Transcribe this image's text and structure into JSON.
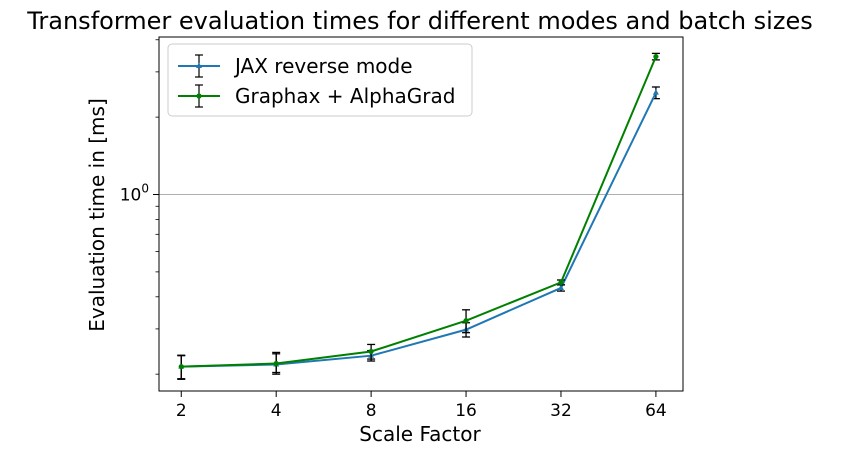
{
  "chart_data": {
    "type": "line",
    "title": "Transformer evaluation times for different modes and batch sizes",
    "xlabel": "Scale Factor",
    "ylabel": "Evaluation time in [ms]",
    "x_scale": "log2",
    "y_scale": "log",
    "categories": [
      "2",
      "4",
      "8",
      "16",
      "32",
      "64"
    ],
    "x": [
      2,
      4,
      8,
      16,
      32,
      64
    ],
    "xlim": [
      1.7,
      78
    ],
    "ylim": [
      0.172,
      4.1
    ],
    "y_ticks": [
      {
        "value": 1,
        "label": "10^0"
      }
    ],
    "grid": "y-major-only",
    "legend": "top-left",
    "series": [
      {
        "name": "JAX reverse mode",
        "color": "#1f77b4",
        "marker": "triangle",
        "values": [
          0.214,
          0.218,
          0.236,
          0.298,
          0.433,
          2.49
        ],
        "err_low": [
          0.022,
          0.015,
          0.011,
          0.019,
          0.012,
          0.13
        ],
        "err_high": [
          0.022,
          0.025,
          0.011,
          0.019,
          0.012,
          0.13
        ]
      },
      {
        "name": "Graphax + AlphaGrad",
        "color": "#008000",
        "marker": "circle",
        "values": [
          0.214,
          0.22,
          0.245,
          0.323,
          0.455,
          3.44
        ],
        "err_low": [
          0.023,
          0.02,
          0.016,
          0.033,
          0.01,
          0.1
        ],
        "err_high": [
          0.023,
          0.02,
          0.016,
          0.033,
          0.01,
          0.1
        ]
      }
    ]
  }
}
